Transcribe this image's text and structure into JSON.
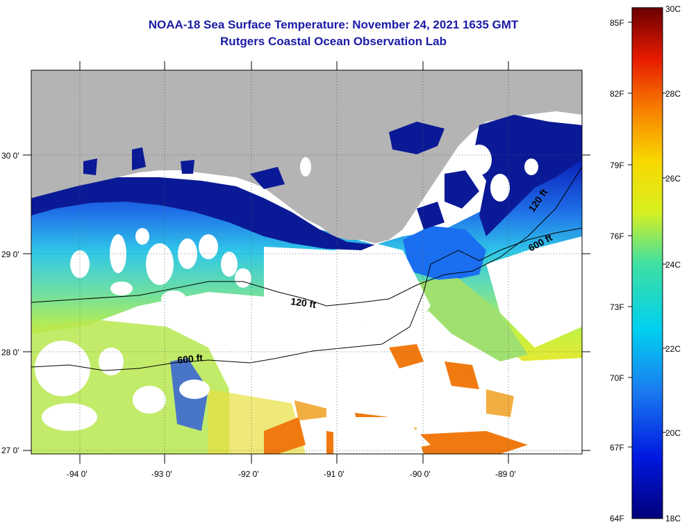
{
  "title": "NOAA-18 Sea Surface Temperature:  November 24, 2021 1635 GMT",
  "subtitle": "Rutgers Coastal Ocean Observation Lab",
  "map": {
    "lat_labels": [
      "30 0'",
      "29 0'",
      "28 0'",
      "27 0'"
    ],
    "lon_labels": [
      "-94 0'",
      "-93 0'",
      "-92 0'",
      "-91 0'",
      "-90 0'",
      "-89 0'"
    ],
    "contours": [
      "120 ft",
      "600 ft",
      "600 ft",
      "120 ft"
    ],
    "colors": {
      "land": "#b4b4b4",
      "cloud": "#ffffff",
      "cold": "#0a1a96",
      "warm": "#e85a0a"
    }
  },
  "colorbar": {
    "fahrenheit": [
      "85F",
      "82F",
      "79F",
      "76F",
      "73F",
      "70F",
      "67F",
      "64F"
    ],
    "celsius": [
      "30C",
      "28C",
      "26C",
      "24C",
      "22C",
      "20C",
      "18C"
    ]
  }
}
